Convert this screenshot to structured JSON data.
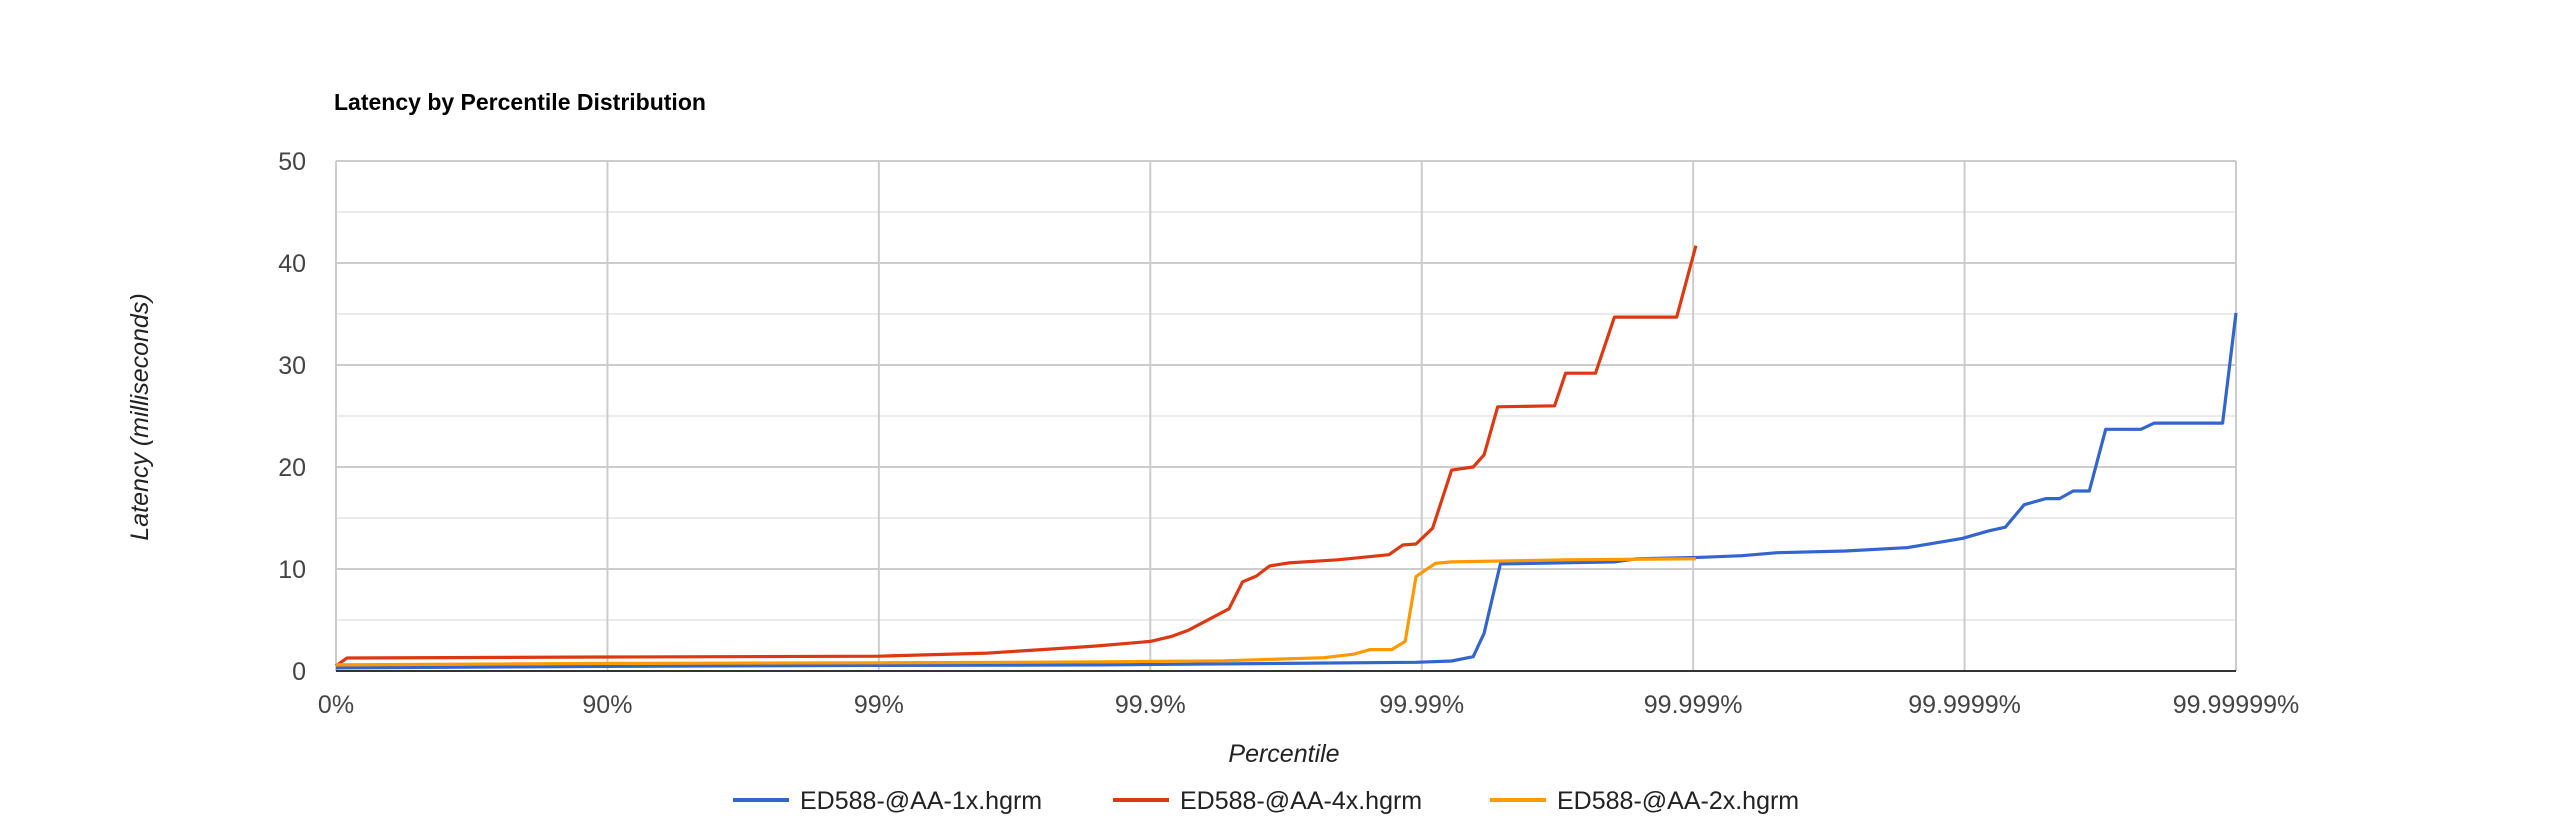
{
  "chart_data": {
    "type": "line",
    "title": "Latency by Percentile Distribution",
    "xlabel": "Percentile",
    "ylabel": "Latency (milliseconds)",
    "x_scale": "inverse-log percentile (each tick adds a nine)",
    "x_ticks": [
      0,
      90,
      99,
      99.9,
      99.99,
      99.999,
      99.9999,
      99.99999
    ],
    "x_tick_labels": [
      "0%",
      "90%",
      "99%",
      "99.9%",
      "99.99%",
      "99.999%",
      "99.9999%",
      "99.99999%"
    ],
    "xlim": [
      0,
      99.99999
    ],
    "ylim": [
      0,
      50
    ],
    "y_ticks": [
      0,
      10,
      20,
      30,
      40,
      50
    ],
    "y_tick_labels": [
      "0",
      "10",
      "20",
      "30",
      "40",
      "50"
    ],
    "grid": true,
    "legend_position": "bottom",
    "series": [
      {
        "name": "ED588-@AA-1x.hgrm",
        "color": "#3366cc",
        "points": [
          [
            0,
            0.3
          ],
          [
            90,
            0.45
          ],
          [
            99,
            0.55
          ],
          [
            99.849,
            0.6
          ],
          [
            99.9895,
            0.85
          ],
          [
            99.99224,
            0.98
          ],
          [
            99.99354,
            1.4
          ],
          [
            99.99411,
            3.7
          ],
          [
            99.99487,
            10.5
          ],
          [
            99.99805,
            10.7
          ],
          [
            99.99838,
            11.0
          ],
          [
            99.999067,
            11.15
          ],
          [
            99.999339,
            11.3
          ],
          [
            99.99951,
            11.6
          ],
          [
            99.999725,
            11.76
          ],
          [
            99.999838,
            12.1
          ],
          [
            99.999898,
            13.0
          ],
          [
            99.9999187,
            13.75
          ],
          [
            99.9999292,
            14.1
          ],
          [
            99.9999397,
            16.3
          ],
          [
            99.9999499,
            16.9
          ],
          [
            99.9999553,
            16.9
          ],
          [
            99.9999602,
            17.65
          ],
          [
            99.9999653,
            17.65
          ],
          [
            99.9999698,
            23.7
          ],
          [
            99.9999776,
            23.7
          ],
          [
            99.99998,
            24.3
          ],
          [
            99.9999888,
            24.3
          ],
          [
            99.99999,
            35.1
          ]
        ]
      },
      {
        "name": "ED588-@AA-4x.hgrm",
        "color": "#dc3912",
        "points": [
          [
            0,
            0.5
          ],
          [
            8.8,
            1.27
          ],
          [
            90,
            1.37
          ],
          [
            99,
            1.45
          ],
          [
            99.602,
            1.75
          ],
          [
            99.749,
            2.1
          ],
          [
            99.842,
            2.45
          ],
          [
            99.9,
            2.9
          ],
          [
            99.9168,
            3.4
          ],
          [
            99.9276,
            4.0
          ],
          [
            99.9487,
            6.1
          ],
          [
            99.9543,
            8.75
          ],
          [
            99.9593,
            9.3
          ],
          [
            99.9637,
            10.3
          ],
          [
            99.9691,
            10.6
          ],
          [
            99.9796,
            10.9
          ],
          [
            99.9868,
            11.4
          ],
          [
            99.98825,
            12.35
          ],
          [
            99.9895,
            12.45
          ],
          [
            99.99088,
            14.0
          ],
          [
            99.99224,
            19.7
          ],
          [
            99.99354,
            20.0
          ],
          [
            99.99411,
            21.2
          ],
          [
            99.99475,
            25.9
          ],
          [
            99.99676,
            26.0
          ],
          [
            99.99705,
            29.2
          ],
          [
            99.99771,
            29.2
          ],
          [
            99.99805,
            34.7
          ],
          [
            99.99885,
            34.7
          ],
          [
            99.999023,
            41.7
          ]
        ]
      },
      {
        "name": "ED588-@AA-2x.hgrm",
        "color": "#ff9900",
        "points": [
          [
            0,
            0.6
          ],
          [
            90,
            0.75
          ],
          [
            99,
            0.8
          ],
          [
            99.684,
            0.85
          ],
          [
            99.849,
            0.9
          ],
          [
            99.9463,
            1.0
          ],
          [
            99.9771,
            1.3
          ],
          [
            99.9822,
            1.65
          ],
          [
            99.9845,
            2.1
          ],
          [
            99.9871,
            2.1
          ],
          [
            99.9885,
            2.9
          ],
          [
            99.9895,
            9.25
          ],
          [
            99.99109,
            10.55
          ],
          [
            99.99224,
            10.7
          ],
          [
            99.99705,
            10.9
          ],
          [
            99.999023,
            11.0
          ]
        ]
      }
    ]
  },
  "colors": {
    "major_grid": "#cccccc",
    "minor_grid": "#ebebeb",
    "baseline": "#333333"
  }
}
